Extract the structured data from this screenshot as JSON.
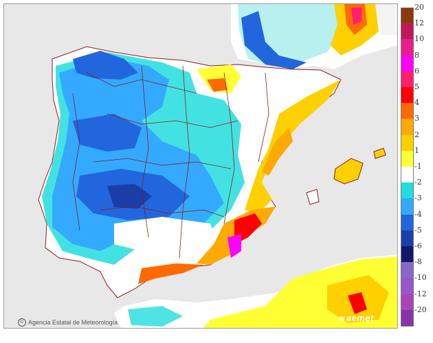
{
  "attribution": {
    "agency": "Agencia Estatal de Meteorología",
    "icon": "copyright-icon"
  },
  "brand": {
    "logo_text": "aemet",
    "icon": "aemet-swirl-icon"
  },
  "legend": {
    "labels": [
      "20",
      "12",
      "10",
      "8",
      "6",
      "5",
      "4",
      "3",
      "2",
      "1",
      "-1",
      "-2",
      "-3",
      "-4",
      "-5",
      "-6",
      "-8",
      "-10",
      "-12",
      "-20"
    ],
    "bins": [
      {
        "color": "#8b3a0a"
      },
      {
        "color": "#c2185b"
      },
      {
        "color": "#e91e8c"
      },
      {
        "color": "#ff00ff"
      },
      {
        "color": "#ff1f70"
      },
      {
        "color": "#ff0000"
      },
      {
        "color": "#ff6a00"
      },
      {
        "color": "#ffaa00"
      },
      {
        "color": "#ffd000"
      },
      {
        "color": "#ffff33"
      },
      {
        "color": "#ffffff"
      },
      {
        "color": "#22dddd"
      },
      {
        "color": "#33aaff"
      },
      {
        "color": "#2266dd"
      },
      {
        "color": "#1a3fa8"
      },
      {
        "color": "#111870"
      },
      {
        "color": "#8866cc"
      },
      {
        "color": "#9955cc"
      },
      {
        "color": "#aa44bb"
      },
      {
        "color": "#8833aa"
      }
    ]
  },
  "colors": {
    "sea": "#e8e8e8",
    "border": "#8b1a1a",
    "land_neutral": "#ffffff"
  }
}
